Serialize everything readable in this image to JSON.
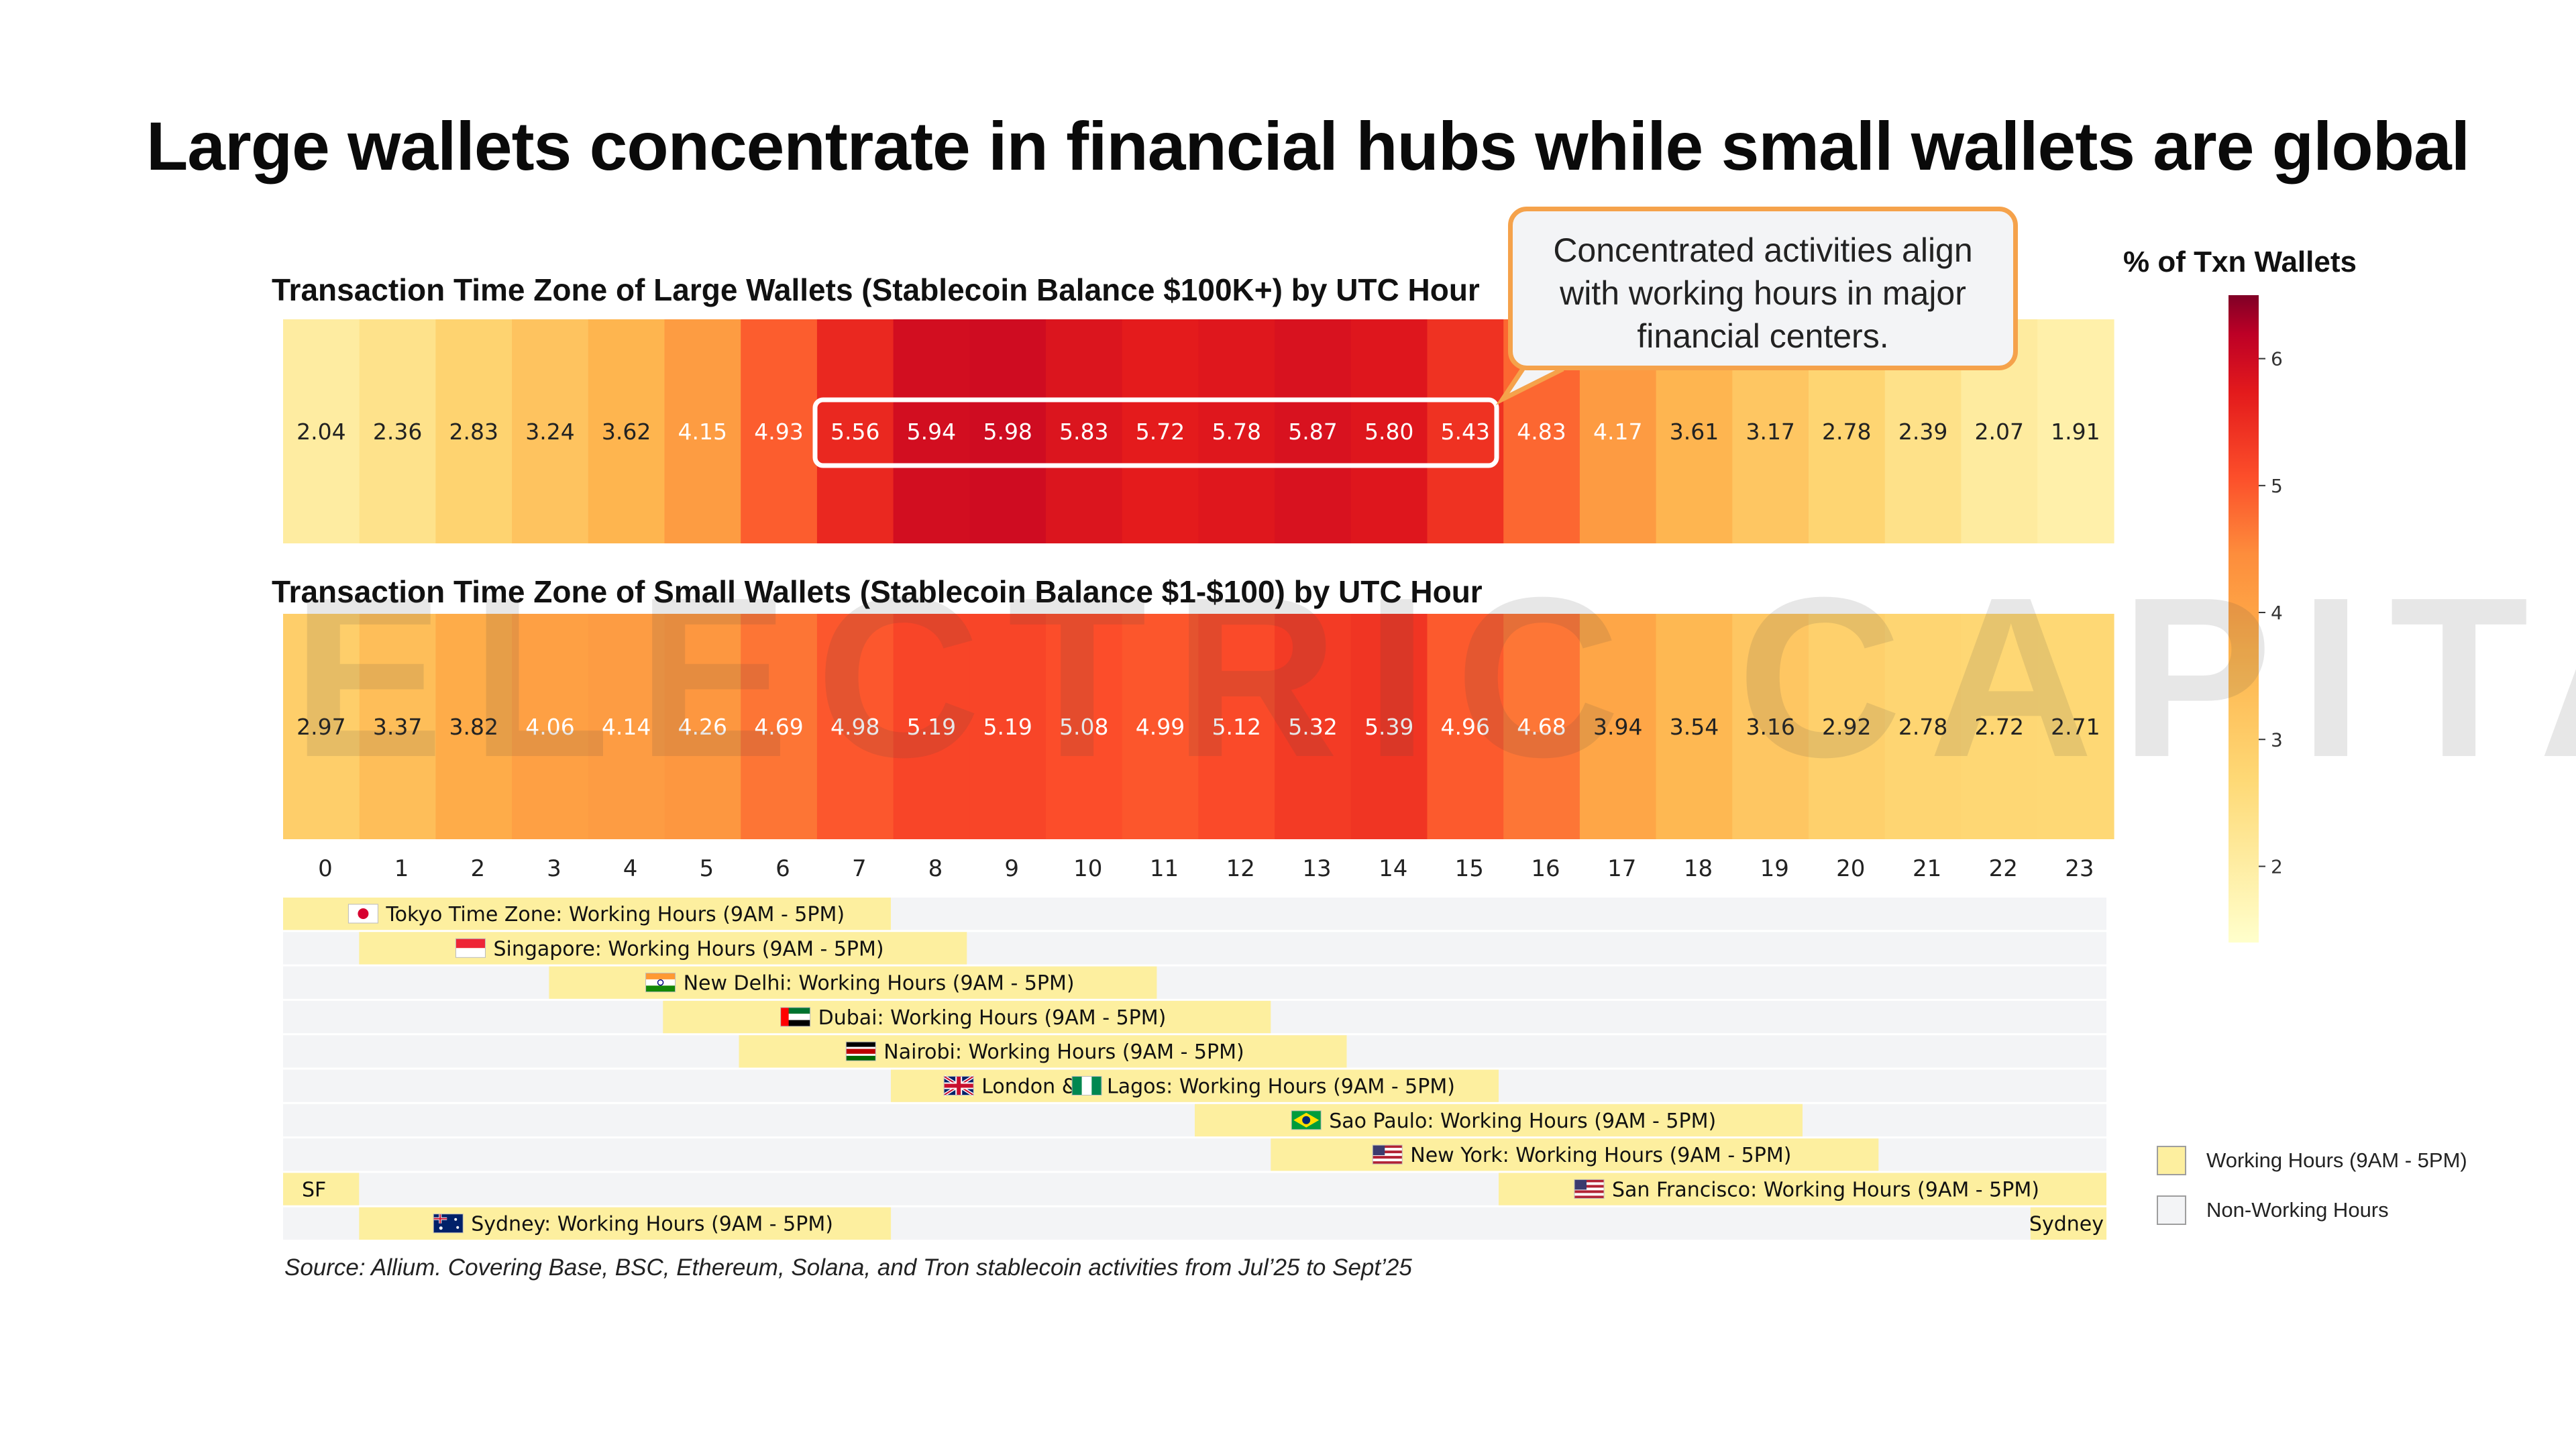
{
  "title": "Large wallets concentrate in financial hubs while small wallets are global",
  "watermark": "ELECTRIC CAPITAL",
  "chart_data": [
    {
      "type": "heatmap",
      "title": "Transaction Time Zone of Large Wallets (Stablecoin Balance $100K+) by UTC Hour",
      "x": [
        0,
        1,
        2,
        3,
        4,
        5,
        6,
        7,
        8,
        9,
        10,
        11,
        12,
        13,
        14,
        15,
        16,
        17,
        18,
        19,
        20,
        21,
        22,
        23
      ],
      "values": [
        2.04,
        2.36,
        2.83,
        3.24,
        3.62,
        4.15,
        4.93,
        5.56,
        5.94,
        5.98,
        5.83,
        5.72,
        5.78,
        5.87,
        5.8,
        5.43,
        4.83,
        4.17,
        3.61,
        3.17,
        2.78,
        2.39,
        2.07,
        1.91
      ],
      "value_labels": [
        "2.04",
        "2.36",
        "2.83",
        "3.24",
        "3.62",
        "4.15",
        "4.93",
        "5.56",
        "5.94",
        "5.98",
        "5.83",
        "5.72",
        "5.78",
        "5.87",
        "5.80",
        "5.43",
        "4.83",
        "4.17",
        "3.61",
        "3.17",
        "2.78",
        "2.39",
        "2.07",
        "1.91"
      ],
      "highlight_hours": [
        7,
        15
      ]
    },
    {
      "type": "heatmap",
      "title": "Transaction Time Zone of Small Wallets (Stablecoin Balance $1-$100) by UTC Hour",
      "x": [
        0,
        1,
        2,
        3,
        4,
        5,
        6,
        7,
        8,
        9,
        10,
        11,
        12,
        13,
        14,
        15,
        16,
        17,
        18,
        19,
        20,
        21,
        22,
        23
      ],
      "values": [
        2.97,
        3.37,
        3.82,
        4.06,
        4.14,
        4.26,
        4.69,
        4.98,
        5.19,
        5.19,
        5.08,
        4.99,
        5.12,
        5.32,
        5.39,
        4.96,
        4.68,
        3.94,
        3.54,
        3.16,
        2.92,
        2.78,
        2.72,
        2.71
      ],
      "value_labels": [
        "2.97",
        "3.37",
        "3.82",
        "4.06",
        "4.14",
        "4.26",
        "4.69",
        "4.98",
        "5.19",
        "5.19",
        "5.08",
        "4.99",
        "5.12",
        "5.32",
        "5.39",
        "4.96",
        "4.68",
        "3.94",
        "3.54",
        "3.16",
        "2.92",
        "2.78",
        "2.72",
        "2.71"
      ],
      "xlabel": "",
      "x_tick_labels": [
        "0",
        "1",
        "2",
        "3",
        "4",
        "5",
        "6",
        "7",
        "8",
        "9",
        "10",
        "11",
        "12",
        "13",
        "14",
        "15",
        "16",
        "17",
        "18",
        "19",
        "20",
        "21",
        "22",
        "23"
      ]
    },
    {
      "type": "gantt",
      "rows": [
        {
          "label": "Tokyo Time Zone: Working Hours (9AM - 5PM)",
          "flag": "japan-flag",
          "start": 0,
          "end": 8
        },
        {
          "label": "Singapore: Working Hours (9AM - 5PM)",
          "flag": "singapore-flag",
          "start": 1,
          "end": 9
        },
        {
          "label": "New Delhi: Working Hours (9AM - 5PM)",
          "flag": "india-flag",
          "start": 3.5,
          "end": 11.5
        },
        {
          "label": "Dubai: Working Hours (9AM - 5PM)",
          "flag": "uae-flag",
          "start": 5,
          "end": 13
        },
        {
          "label": "Nairobi: Working Hours (9AM - 5PM)",
          "flag": "kenya-flag",
          "start": 6,
          "end": 14
        },
        {
          "label": "London & Lagos: Working Hours (9AM - 5PM)",
          "flag": "uk-flag",
          "flag2": "nigeria-flag",
          "start": 8,
          "end": 16
        },
        {
          "label": "Sao Paulo: Working Hours (9AM - 5PM)",
          "flag": "brazil-flag",
          "start": 12,
          "end": 20
        },
        {
          "label": "New York: Working Hours (9AM - 5PM)",
          "flag": "usa-flag",
          "start": 13,
          "end": 21
        },
        {
          "label": "San Francisco: Working Hours (9AM - 5PM)",
          "flag": "usa-flag",
          "start": 16,
          "end": 24,
          "start2": 0,
          "end2": 1,
          "label2": "SF"
        },
        {
          "label": "Sydney: Working Hours (9AM - 5PM)",
          "flag": "australia-flag",
          "start": 1,
          "end": 8,
          "start2": 23,
          "end2": 24,
          "label2": "Sydney",
          "lead": 1
        }
      ]
    }
  ],
  "callout": {
    "lines": [
      "Concentrated activities align",
      "with working hours in major",
      "financial centers."
    ]
  },
  "colorbar": {
    "title": "% of Txn Wallets",
    "min": 1.4,
    "max": 6.5,
    "ticks": [
      2,
      3,
      4,
      5,
      6
    ],
    "tick_labels": [
      "2",
      "3",
      "4",
      "5",
      "6"
    ]
  },
  "legend": {
    "working": "Working Hours (9AM - 5PM)",
    "non_working": "Non-Working Hours"
  },
  "colors": {
    "working": "#fdef9f",
    "non_working": "#f3f4f6",
    "highlight_box": "#ffffff",
    "callout_border": "#f5a24b"
  },
  "source": "Source: Allium. Covering Base, BSC, Ethereum, Solana, and Tron stablecoin activities from Jul’25 to Sept’25"
}
